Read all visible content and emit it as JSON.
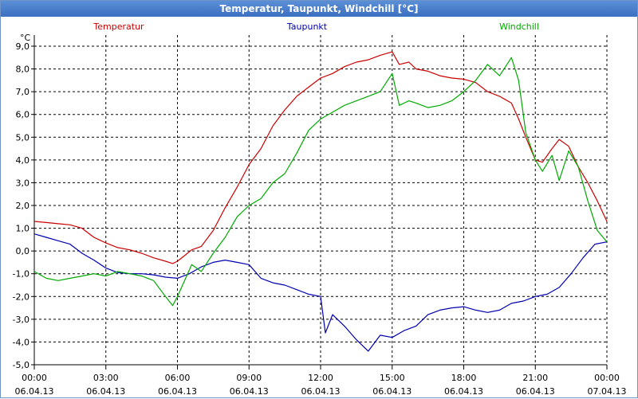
{
  "window": {
    "title": "Temperatur, Taupunkt, Windchill [°C]"
  },
  "chart_data": {
    "type": "line",
    "title": "Temperatur, Taupunkt, Windchill [°C]",
    "ylabel": "°C",
    "xlabel": "",
    "ylim": [
      -5.0,
      9.0
    ],
    "xlim": [
      0,
      24
    ],
    "grid": true,
    "legend_position": "top",
    "y_ticks": [
      "9,0",
      "8,0",
      "7,0",
      "6,0",
      "5,0",
      "4,0",
      "3,0",
      "2,0",
      "1,0",
      "0,0",
      "-1,0",
      "-2,0",
      "-3,0",
      "-4,0",
      "-5,0"
    ],
    "x_ticks": [
      {
        "time": "00:00",
        "date": "06.04.13"
      },
      {
        "time": "03:00",
        "date": "06.04.13"
      },
      {
        "time": "06:00",
        "date": "06.04.13"
      },
      {
        "time": "09:00",
        "date": "06.04.13"
      },
      {
        "time": "12:00",
        "date": "06.04.13"
      },
      {
        "time": "15:00",
        "date": "06.04.13"
      },
      {
        "time": "18:00",
        "date": "06.04.13"
      },
      {
        "time": "21:00",
        "date": "06.04.13"
      },
      {
        "time": "00:00",
        "date": "07.04.13"
      }
    ],
    "x_unit": "hours after 06.04.13 00:00",
    "series": [
      {
        "name": "Temperatur",
        "color": "#cc0000",
        "points": [
          [
            0,
            1.3
          ],
          [
            0.5,
            1.25
          ],
          [
            1,
            1.2
          ],
          [
            1.5,
            1.15
          ],
          [
            2,
            1.0
          ],
          [
            2.5,
            0.6
          ],
          [
            3,
            0.35
          ],
          [
            3.5,
            0.15
          ],
          [
            4,
            0.05
          ],
          [
            4.5,
            -0.1
          ],
          [
            5,
            -0.3
          ],
          [
            5.5,
            -0.45
          ],
          [
            5.8,
            -0.55
          ],
          [
            6,
            -0.45
          ],
          [
            6.3,
            -0.2
          ],
          [
            6.6,
            0.05
          ],
          [
            7,
            0.2
          ],
          [
            7.5,
            0.9
          ],
          [
            8,
            1.9
          ],
          [
            8.5,
            2.8
          ],
          [
            9,
            3.8
          ],
          [
            9.5,
            4.5
          ],
          [
            10,
            5.5
          ],
          [
            10.5,
            6.2
          ],
          [
            11,
            6.8
          ],
          [
            11.5,
            7.2
          ],
          [
            12,
            7.6
          ],
          [
            12.5,
            7.8
          ],
          [
            13,
            8.1
          ],
          [
            13.5,
            8.3
          ],
          [
            14,
            8.4
          ],
          [
            14.5,
            8.6
          ],
          [
            15,
            8.75
          ],
          [
            15.3,
            8.2
          ],
          [
            15.7,
            8.3
          ],
          [
            16,
            8.0
          ],
          [
            16.5,
            7.9
          ],
          [
            17,
            7.7
          ],
          [
            17.5,
            7.6
          ],
          [
            18,
            7.55
          ],
          [
            18.5,
            7.4
          ],
          [
            19,
            7.0
          ],
          [
            19.5,
            6.8
          ],
          [
            20,
            6.5
          ],
          [
            20.3,
            5.8
          ],
          [
            20.6,
            5.0
          ],
          [
            21,
            4.0
          ],
          [
            21.3,
            3.9
          ],
          [
            21.7,
            4.5
          ],
          [
            22,
            4.9
          ],
          [
            22.4,
            4.6
          ],
          [
            22.8,
            3.7
          ],
          [
            23.2,
            3.0
          ],
          [
            23.6,
            2.2
          ],
          [
            24,
            1.3
          ]
        ]
      },
      {
        "name": "Taupunkt",
        "color": "#0000b0",
        "points": [
          [
            0,
            0.75
          ],
          [
            0.5,
            0.6
          ],
          [
            1,
            0.45
          ],
          [
            1.5,
            0.3
          ],
          [
            2,
            -0.1
          ],
          [
            2.5,
            -0.4
          ],
          [
            3,
            -0.75
          ],
          [
            3.5,
            -0.95
          ],
          [
            4,
            -1.0
          ],
          [
            4.5,
            -1.0
          ],
          [
            5,
            -1.05
          ],
          [
            5.5,
            -1.15
          ],
          [
            6,
            -1.2
          ],
          [
            6.5,
            -1.0
          ],
          [
            7,
            -0.7
          ],
          [
            7.5,
            -0.5
          ],
          [
            8,
            -0.4
          ],
          [
            8.5,
            -0.5
          ],
          [
            9,
            -0.6
          ],
          [
            9.5,
            -1.2
          ],
          [
            10,
            -1.4
          ],
          [
            10.5,
            -1.5
          ],
          [
            11,
            -1.7
          ],
          [
            11.5,
            -1.9
          ],
          [
            12,
            -2.0
          ],
          [
            12.2,
            -3.6
          ],
          [
            12.5,
            -2.8
          ],
          [
            13,
            -3.3
          ],
          [
            13.5,
            -3.9
          ],
          [
            14,
            -4.4
          ],
          [
            14.5,
            -3.7
          ],
          [
            15,
            -3.8
          ],
          [
            15.5,
            -3.5
          ],
          [
            16,
            -3.3
          ],
          [
            16.5,
            -2.8
          ],
          [
            17,
            -2.6
          ],
          [
            17.5,
            -2.5
          ],
          [
            18,
            -2.45
          ],
          [
            18.5,
            -2.6
          ],
          [
            19,
            -2.7
          ],
          [
            19.5,
            -2.6
          ],
          [
            20,
            -2.3
          ],
          [
            20.5,
            -2.2
          ],
          [
            21,
            -2.0
          ],
          [
            21.5,
            -1.9
          ],
          [
            22,
            -1.6
          ],
          [
            22.5,
            -1.0
          ],
          [
            23,
            -0.3
          ],
          [
            23.5,
            0.3
          ],
          [
            24,
            0.4
          ]
        ]
      },
      {
        "name": "Windchill",
        "color": "#00aa00",
        "points": [
          [
            0,
            -0.9
          ],
          [
            0.5,
            -1.2
          ],
          [
            1,
            -1.3
          ],
          [
            1.5,
            -1.2
          ],
          [
            2,
            -1.1
          ],
          [
            2.5,
            -1.0
          ],
          [
            3,
            -1.1
          ],
          [
            3.5,
            -0.9
          ],
          [
            4,
            -1.0
          ],
          [
            4.5,
            -1.1
          ],
          [
            5,
            -1.3
          ],
          [
            5.5,
            -2.0
          ],
          [
            5.8,
            -2.4
          ],
          [
            6,
            -2.0
          ],
          [
            6.3,
            -1.3
          ],
          [
            6.6,
            -0.6
          ],
          [
            7,
            -0.9
          ],
          [
            7.5,
            -0.1
          ],
          [
            8,
            0.6
          ],
          [
            8.5,
            1.5
          ],
          [
            9,
            2.0
          ],
          [
            9.5,
            2.3
          ],
          [
            10,
            3.0
          ],
          [
            10.5,
            3.4
          ],
          [
            11,
            4.3
          ],
          [
            11.5,
            5.3
          ],
          [
            12,
            5.8
          ],
          [
            12.5,
            6.1
          ],
          [
            13,
            6.4
          ],
          [
            13.5,
            6.6
          ],
          [
            14,
            6.8
          ],
          [
            14.5,
            7.0
          ],
          [
            15,
            7.8
          ],
          [
            15.3,
            6.4
          ],
          [
            15.7,
            6.6
          ],
          [
            16,
            6.5
          ],
          [
            16.5,
            6.3
          ],
          [
            17,
            6.4
          ],
          [
            17.5,
            6.6
          ],
          [
            18,
            7.0
          ],
          [
            18.5,
            7.5
          ],
          [
            19,
            8.2
          ],
          [
            19.5,
            7.7
          ],
          [
            20,
            8.5
          ],
          [
            20.3,
            7.5
          ],
          [
            20.6,
            5.2
          ],
          [
            21,
            4.0
          ],
          [
            21.3,
            3.5
          ],
          [
            21.7,
            4.2
          ],
          [
            22,
            3.1
          ],
          [
            22.4,
            4.4
          ],
          [
            22.8,
            3.7
          ],
          [
            23.2,
            2.2
          ],
          [
            23.6,
            0.9
          ],
          [
            24,
            0.4
          ]
        ]
      }
    ]
  }
}
